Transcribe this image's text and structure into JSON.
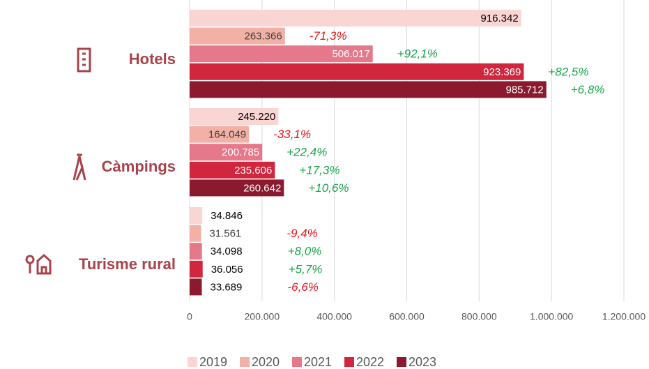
{
  "chart_data": {
    "type": "hbar",
    "categories": [
      "Hotels",
      "Càmpings",
      "Turisme rural"
    ],
    "xlim": [
      0,
      1200000
    ],
    "xticks": [
      0,
      {
        "value": 200000,
        "label": "200.000"
      },
      {
        "value": 400000,
        "label": "400.000"
      },
      {
        "value": 600000,
        "label": "600.000"
      },
      {
        "value": 800000,
        "label": "800.000"
      },
      {
        "value": 1000000,
        "label": "1.000.000"
      },
      {
        "value": 1200000,
        "label": "1.200.000"
      }
    ],
    "grid": true,
    "legend": "bottom",
    "series": [
      {
        "name": "2019",
        "color": "#f9d5d3",
        "values": [
          916342,
          245220,
          34846
        ],
        "value_labels": [
          "916.342",
          "245.220",
          "34.846"
        ]
      },
      {
        "name": "2020",
        "color": "#f2b0a6",
        "values": [
          263366,
          164049,
          31561
        ],
        "value_labels": [
          "263.366",
          "164.049",
          "31.561"
        ],
        "changes": [
          -71.3,
          -33.1,
          -9.4
        ],
        "change_labels": [
          "-71,3%",
          "-33,1%",
          "-9,4%"
        ]
      },
      {
        "name": "2021",
        "color": "#e5788a",
        "values": [
          506017,
          200785,
          34098
        ],
        "value_labels": [
          "506.017",
          "200.785",
          "34.098"
        ],
        "changes": [
          92.1,
          22.4,
          8.0
        ],
        "change_labels": [
          "+92,1%",
          "+22,4%",
          "+8,0%"
        ]
      },
      {
        "name": "2022",
        "color": "#d0273e",
        "values": [
          923369,
          235606,
          36056
        ],
        "value_labels": [
          "923.369",
          "235.606",
          "36.056"
        ],
        "changes": [
          82.5,
          17.3,
          5.7
        ],
        "change_labels": [
          "+82,5%",
          "+17,3%",
          "+5,7%"
        ]
      },
      {
        "name": "2023",
        "color": "#8b1a2e",
        "values": [
          985712,
          260642,
          33689
        ],
        "value_labels": [
          "985.712",
          "260.642",
          "33.689"
        ],
        "changes": [
          6.8,
          10.6,
          -6.6
        ],
        "change_labels": [
          "+6,8%",
          "+10,6%",
          "-6,6%"
        ]
      }
    ]
  }
}
